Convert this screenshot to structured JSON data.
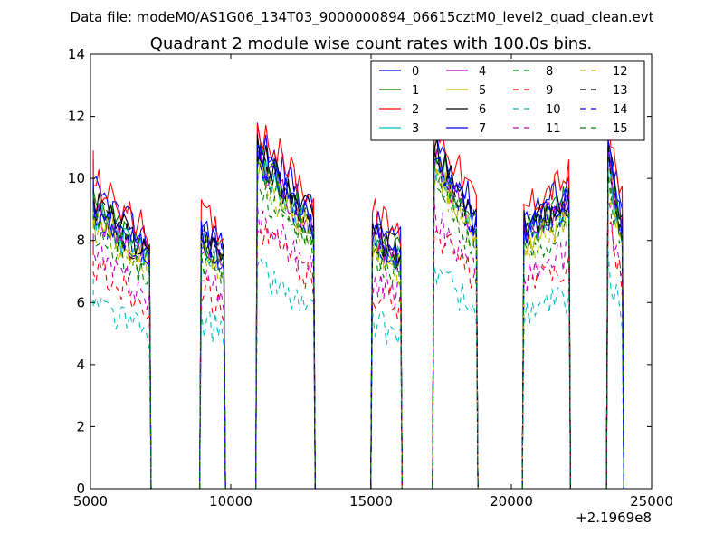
{
  "chart_data": {
    "type": "line",
    "suptitle": "Data file: modeM0/AS1G06_134T03_9000000894_06615cztM0_level2_quad_clean.evt",
    "title": "Quadrant 2 module wise count rates with 100.0s bins.",
    "xlabel": "",
    "ylabel": "",
    "x_offset_label": "+2.1969e8",
    "xlim": [
      5000,
      25000
    ],
    "ylim": [
      0,
      14
    ],
    "xticks": [
      5000,
      10000,
      15000,
      20000,
      25000
    ],
    "yticks": [
      0,
      2,
      4,
      6,
      8,
      10,
      12,
      14
    ],
    "grid": false,
    "legend_position": "top-right",
    "active_segments": [
      {
        "start": 5100,
        "end": 7100,
        "flare": false
      },
      {
        "start": 8950,
        "end": 9750,
        "flare": false
      },
      {
        "start": 10950,
        "end": 12950,
        "flare": true
      },
      {
        "start": 15050,
        "end": 16050,
        "flare": false
      },
      {
        "start": 17250,
        "end": 18750,
        "flare": true
      },
      {
        "start": 20450,
        "end": 22050,
        "flare": false
      },
      {
        "start": 23450,
        "end": 23950,
        "flare": true
      }
    ],
    "series": [
      {
        "name": "0",
        "color": "#0000ff",
        "dash": "solid",
        "level": 8.6
      },
      {
        "name": "1",
        "color": "#008000",
        "dash": "solid",
        "level": 8.2
      },
      {
        "name": "2",
        "color": "#ff0000",
        "dash": "solid",
        "level": 8.9
      },
      {
        "name": "3",
        "color": "#00bfbf",
        "dash": "solid",
        "level": 7.9
      },
      {
        "name": "4",
        "color": "#bf00bf",
        "dash": "solid",
        "level": 8.0
      },
      {
        "name": "5",
        "color": "#bfbf00",
        "dash": "solid",
        "level": 7.8
      },
      {
        "name": "6",
        "color": "#000000",
        "dash": "solid",
        "level": 8.3
      },
      {
        "name": "7",
        "color": "#0000ff",
        "dash": "solid",
        "level": 8.1
      },
      {
        "name": "8",
        "color": "#008000",
        "dash": "dashed",
        "level": 7.4
      },
      {
        "name": "9",
        "color": "#ff0000",
        "dash": "dashed",
        "level": 6.4
      },
      {
        "name": "10",
        "color": "#00bfbf",
        "dash": "dashed",
        "level": 5.4
      },
      {
        "name": "11",
        "color": "#bf00bf",
        "dash": "dashed",
        "level": 6.7
      },
      {
        "name": "12",
        "color": "#bfbf00",
        "dash": "dashed",
        "level": 7.6
      },
      {
        "name": "13",
        "color": "#000000",
        "dash": "dashed",
        "level": 8.1
      },
      {
        "name": "14",
        "color": "#0000ff",
        "dash": "dashed",
        "level": 8.0
      },
      {
        "name": "15",
        "color": "#008000",
        "dash": "dashed",
        "level": 7.7
      }
    ]
  }
}
